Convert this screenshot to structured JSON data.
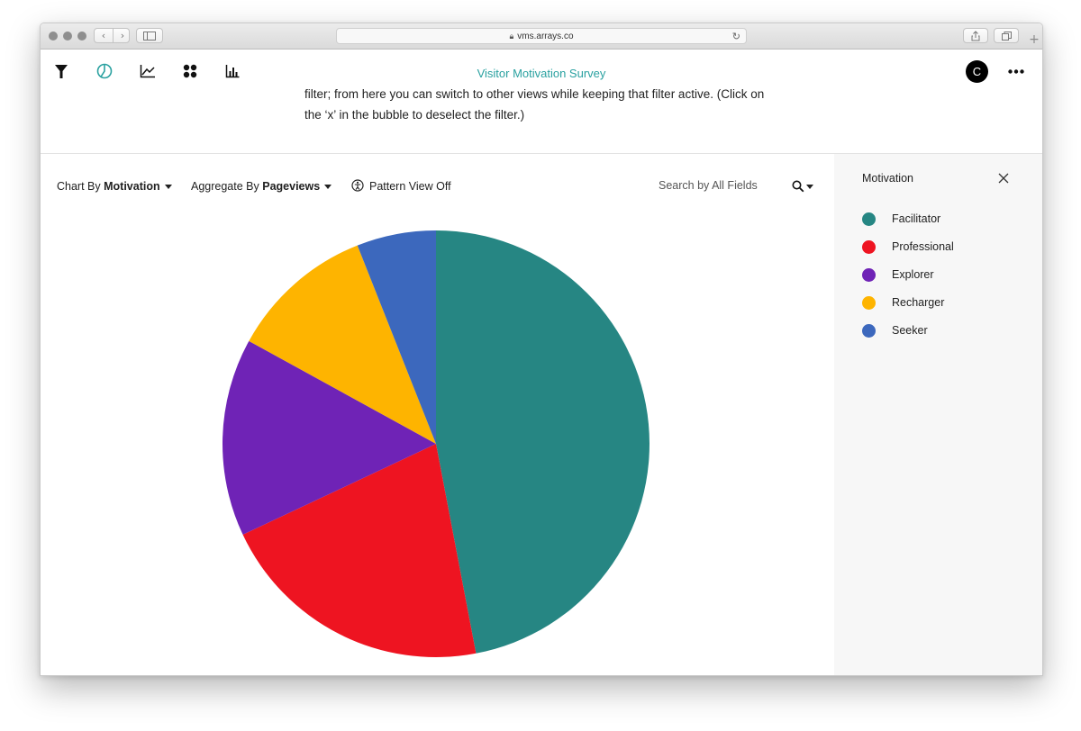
{
  "browser": {
    "url": "vms.arrays.co"
  },
  "header": {
    "title": "Visitor Motivation Survey",
    "nav_icons": [
      "filter-icon",
      "pie-chart-icon",
      "line-chart-icon",
      "cluster-icon",
      "bar-chart-icon"
    ],
    "user_initial": "C"
  },
  "intro": {
    "line1": "filter; from here you can switch to other views while keeping that filter active. (Click on",
    "line2": "the ‘x’ in the bubble to deselect the filter.)"
  },
  "controls": {
    "chart_by_prefix": "Chart By",
    "chart_by_value": "Motivation",
    "aggregate_by_prefix": "Aggregate By",
    "aggregate_by_value": "Pageviews",
    "pattern_view": "Pattern View Off",
    "search_placeholder": "Search by All Fields"
  },
  "legend": {
    "title": "Motivation"
  },
  "colors": {
    "accent": "#2aa1a0",
    "Facilitator": "#268683",
    "Professional": "#ee1421",
    "Explorer": "#6f23b6",
    "Recharger": "#feb400",
    "Seeker": "#3c68bd"
  },
  "chart_data": {
    "type": "pie",
    "title": "",
    "categories": [
      "Facilitator",
      "Professional",
      "Explorer",
      "Recharger",
      "Seeker"
    ],
    "values": [
      47,
      21,
      15,
      11,
      6
    ],
    "legend_position": "right"
  }
}
